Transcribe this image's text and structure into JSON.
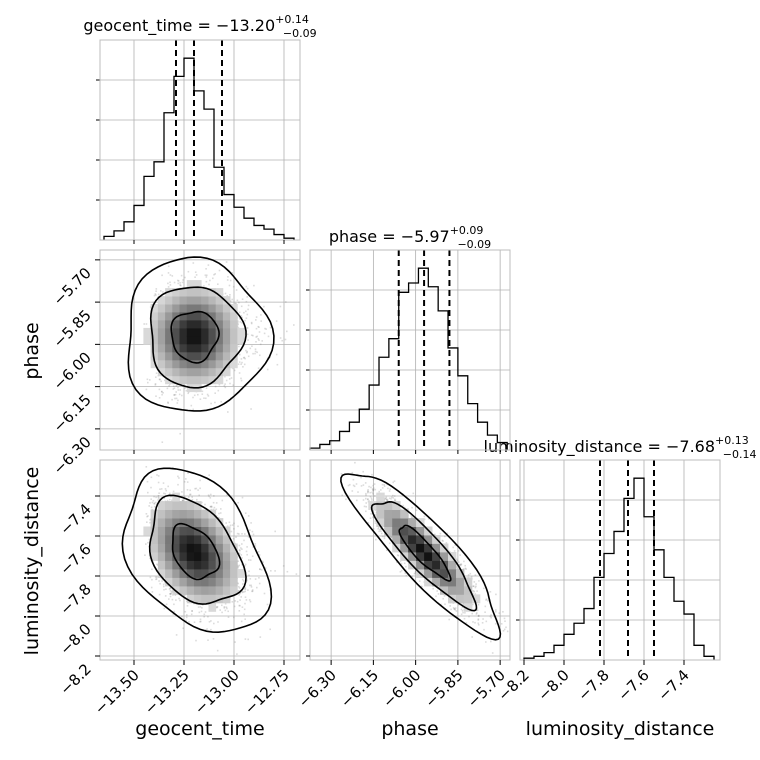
{
  "chart_data": {
    "type": "corner",
    "parameters": [
      "geocent_time",
      "phase",
      "luminosity_distance"
    ],
    "titles": [
      {
        "param": "geocent_time",
        "label": "geocent_time",
        "median": "−13.20",
        "plus": "+0.14",
        "minus": "−0.09"
      },
      {
        "param": "phase",
        "label": "phase",
        "median": "−5.97",
        "plus": "+0.09",
        "minus": "−0.09"
      },
      {
        "param": "luminosity_distance",
        "label": "luminosity_distance",
        "median": "−7.68",
        "plus": "+0.13",
        "minus": "−0.14"
      }
    ],
    "axes": {
      "geocent_time": {
        "range": [
          -13.67,
          -12.67
        ],
        "ticks": [
          -13.5,
          -13.25,
          -13.0,
          -12.75
        ],
        "tick_labels": [
          "−13.50",
          "−13.25",
          "−13.00",
          "−12.75"
        ]
      },
      "phase": {
        "range": [
          -6.375,
          -5.665
        ],
        "ticks": [
          -6.3,
          -6.15,
          -6.0,
          -5.85,
          -5.7
        ],
        "tick_labels": [
          "−6.30",
          "−6.15",
          "−6.00",
          "−5.85",
          "−5.70"
        ]
      },
      "luminosity_distance": {
        "range": [
          -8.22,
          -7.22
        ],
        "ticks": [
          -8.2,
          -8.0,
          -7.8,
          -7.6,
          -7.4
        ],
        "tick_labels": [
          "−8.2",
          "−8.0",
          "−7.8",
          "−7.6",
          "−7.4"
        ]
      }
    },
    "histograms": [
      {
        "param": "geocent_time",
        "bin_edges": [
          -13.65,
          -13.6,
          -13.55,
          -13.5,
          -13.45,
          -13.4,
          -13.35,
          -13.3,
          -13.25,
          -13.2,
          -13.15,
          -13.1,
          -13.05,
          -13.0,
          -12.95,
          -12.9,
          -12.85,
          -12.8,
          -12.75,
          -12.7
        ],
        "counts": [
          2,
          5,
          10,
          19,
          35,
          43,
          70,
          90,
          100,
          82,
          72,
          40,
          25,
          18,
          12,
          8,
          6,
          3,
          1
        ],
        "quantiles": [
          -13.29,
          -13.2,
          -13.06
        ]
      },
      {
        "param": "phase",
        "bin_edges": [
          -6.375,
          -6.34,
          -6.305,
          -6.27,
          -6.235,
          -6.2,
          -6.165,
          -6.13,
          -6.095,
          -6.06,
          -6.025,
          -5.99,
          -5.955,
          -5.92,
          -5.885,
          -5.85,
          -5.815,
          -5.78,
          -5.745,
          -5.71,
          -5.675
        ],
        "counts": [
          1,
          3,
          5,
          10,
          15,
          22,
          35,
          50,
          60,
          85,
          90,
          98,
          88,
          75,
          55,
          40,
          25,
          15,
          8,
          4
        ],
        "quantiles": [
          -6.06,
          -5.97,
          -5.88
        ]
      },
      {
        "param": "luminosity_distance",
        "bin_edges": [
          -8.2,
          -8.15,
          -8.1,
          -8.05,
          -8.0,
          -7.95,
          -7.9,
          -7.85,
          -7.8,
          -7.75,
          -7.7,
          -7.65,
          -7.6,
          -7.55,
          -7.5,
          -7.45,
          -7.4,
          -7.35,
          -7.3,
          -7.25
        ],
        "counts": [
          1,
          2,
          4,
          8,
          14,
          20,
          28,
          45,
          58,
          70,
          88,
          99,
          78,
          60,
          45,
          32,
          25,
          8,
          2
        ],
        "quantiles": [
          -7.82,
          -7.68,
          -7.55
        ]
      }
    ],
    "pairs": [
      {
        "x": "geocent_time",
        "y": "phase",
        "mean": [
          -13.2,
          -5.97
        ],
        "sd": [
          0.115,
          0.09
        ],
        "corr": 0.0,
        "skew": 0.35
      },
      {
        "x": "geocent_time",
        "y": "luminosity_distance",
        "mean": [
          -13.2,
          -7.68
        ],
        "sd": [
          0.115,
          0.135
        ],
        "corr": -0.35,
        "skew": 0.35
      },
      {
        "x": "phase",
        "y": "luminosity_distance",
        "mean": [
          -5.97,
          -7.68
        ],
        "sd": [
          0.09,
          0.135
        ],
        "corr": -0.88,
        "skew": 0.0
      }
    ],
    "contour_levels": [
      0.39,
      0.86,
      0.99
    ],
    "grid": true,
    "colors": {
      "line": "#000000",
      "scatter": "#808080",
      "grid": "#b0b0b0",
      "frame": "#bcbcbc"
    }
  }
}
